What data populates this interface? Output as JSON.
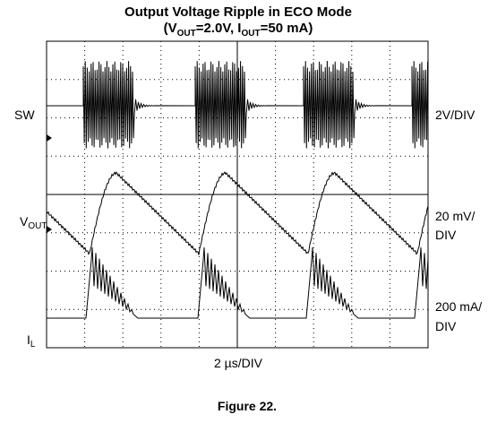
{
  "title": "Output Voltage Ripple in ECO Mode",
  "subtitle": [
    "(V",
    "OUT",
    "=2.0V, I",
    "OUT",
    "=50 mA)"
  ],
  "channels": [
    {
      "label": "SW",
      "scale": [
        "2V/DIV"
      ]
    },
    {
      "label": [
        "V",
        "OUT"
      ],
      "scale": [
        "20 mV/",
        "DIV"
      ]
    },
    {
      "label": [
        "I",
        "L"
      ],
      "scale": [
        "200 mA/",
        "DIV"
      ]
    }
  ],
  "timebase": "2 µs/DIV",
  "caption": "Figure 22."
}
